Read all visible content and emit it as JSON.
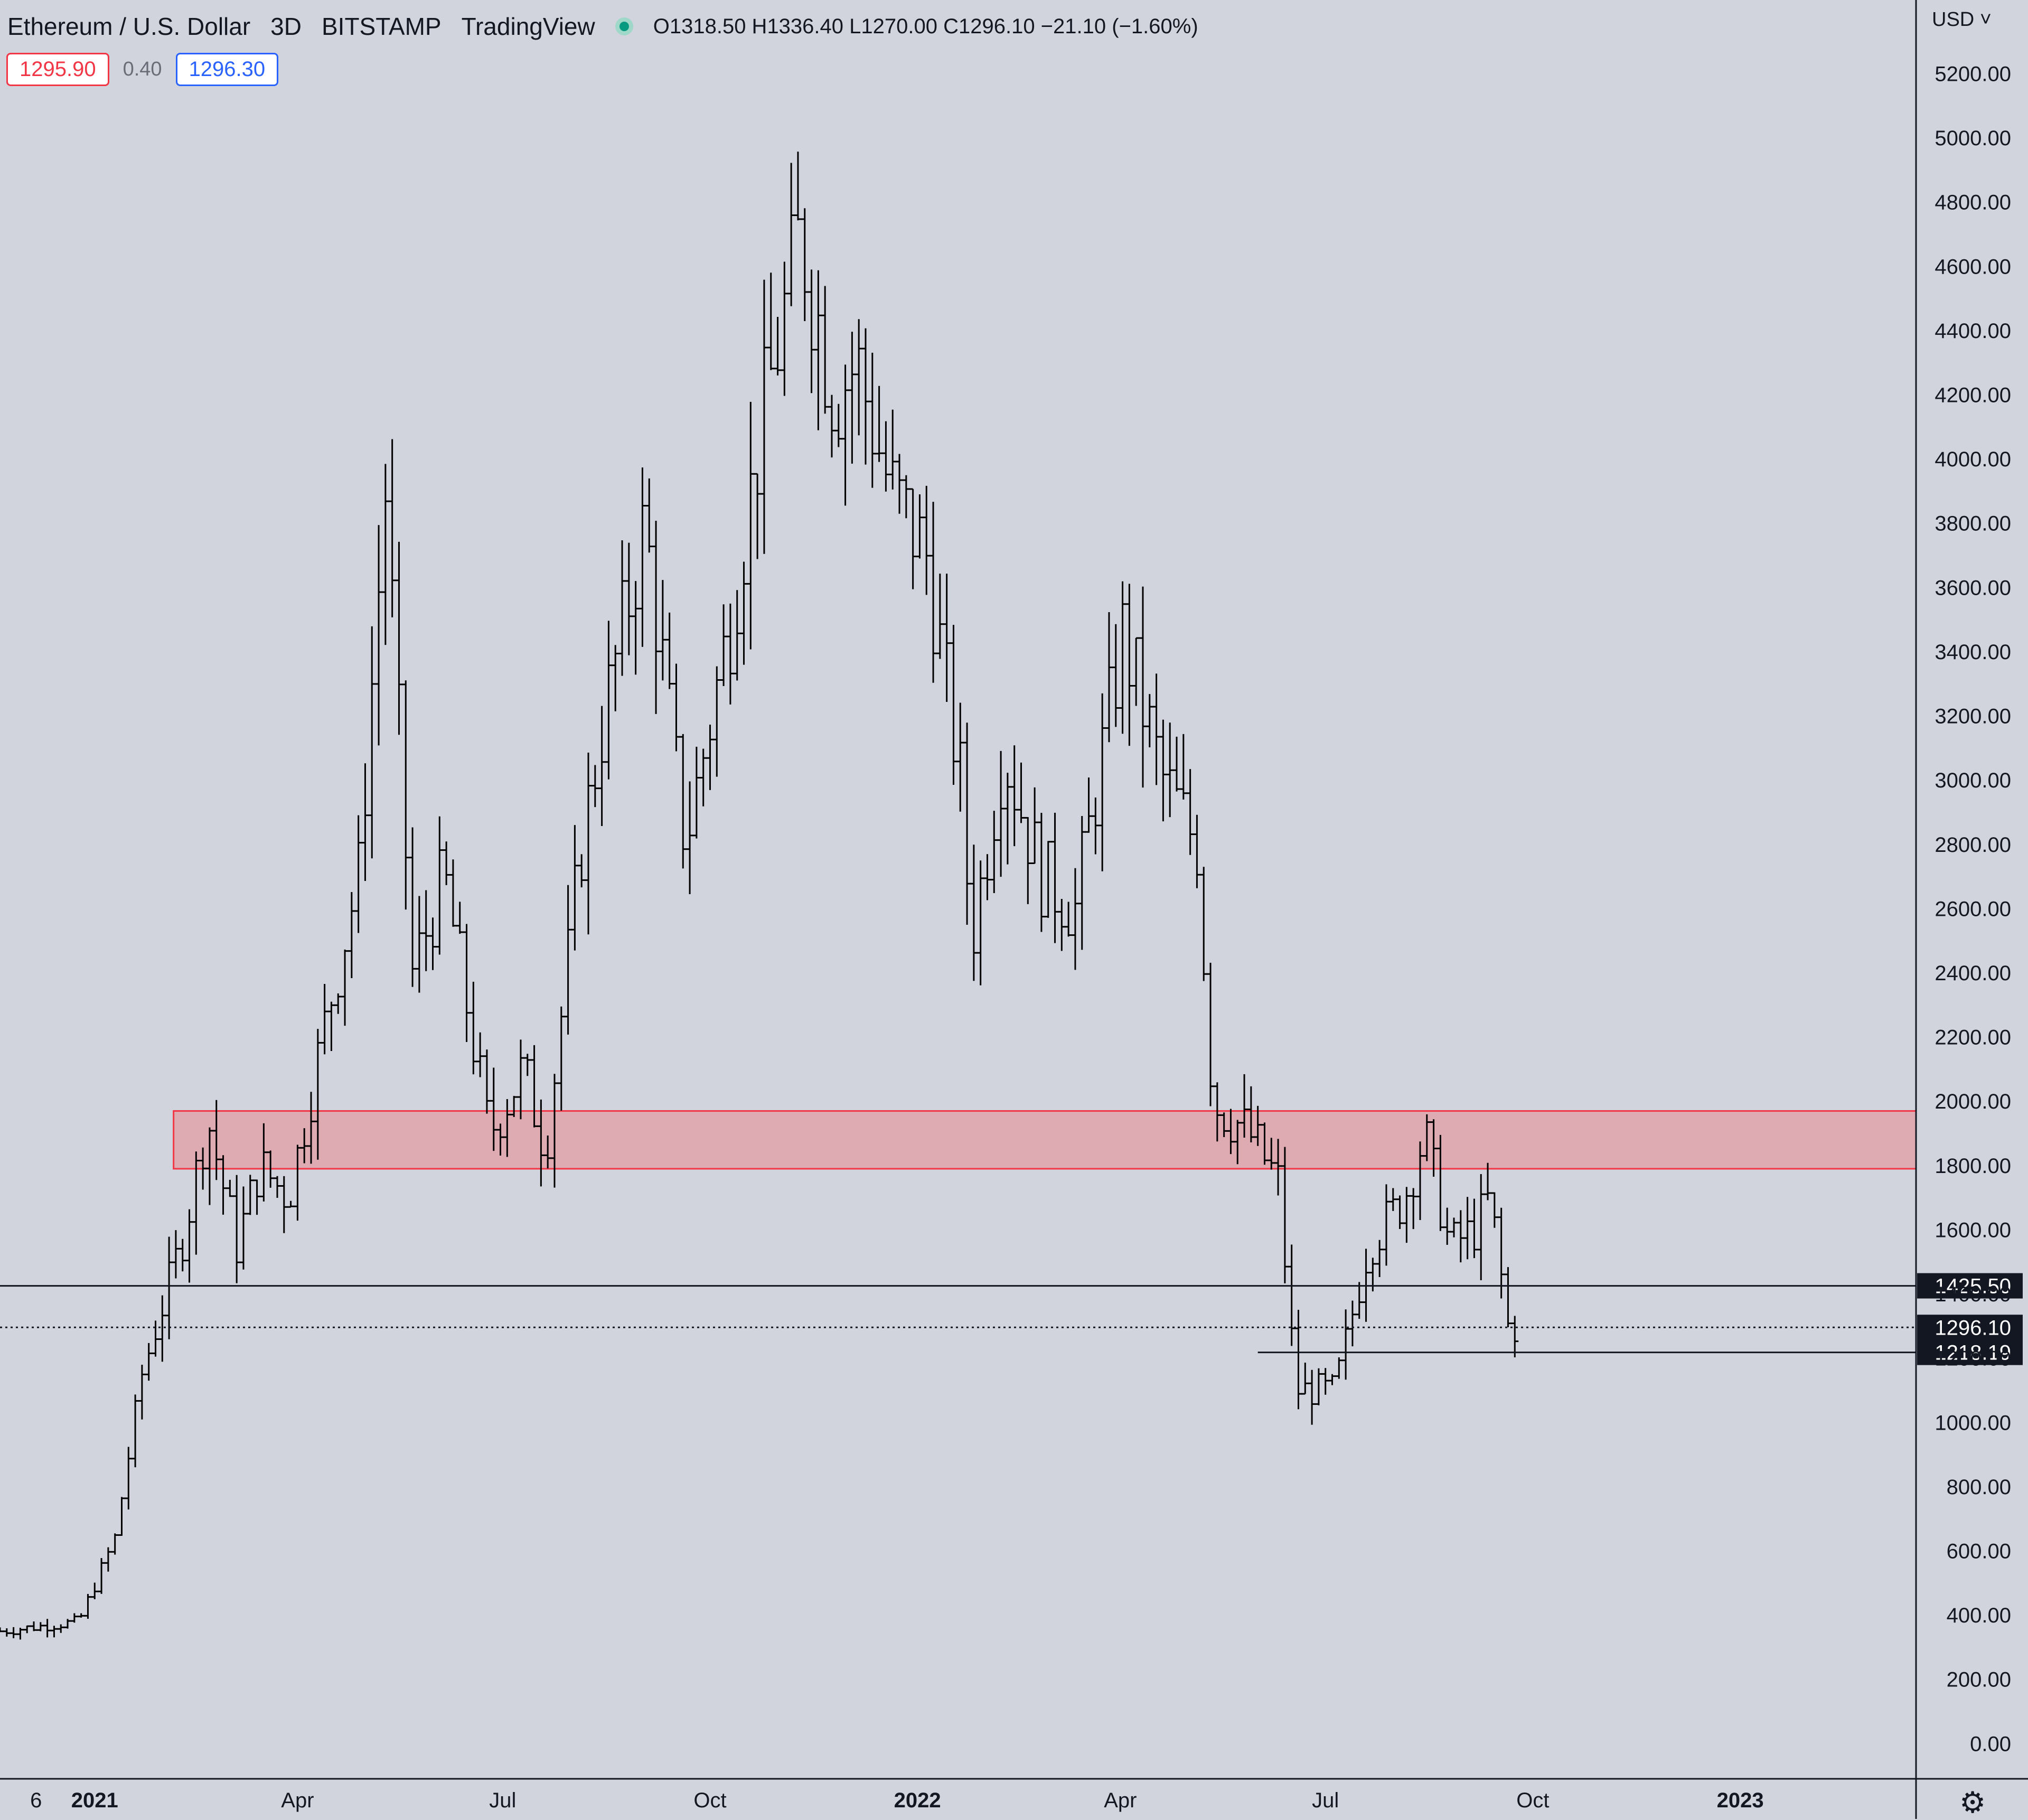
{
  "header": {
    "symbol": "Ethereum / U.S. Dollar",
    "interval": "3D",
    "exchange": "BITSTAMP",
    "provider": "TradingView",
    "ohlc": "O1318.50 H1336.40 L1270.00 C1296.10 −21.10 (−1.60%)"
  },
  "quotes": {
    "bid": "1295.90",
    "spread": "0.40",
    "ask": "1296.30"
  },
  "currency": "USD",
  "icons": {
    "currency_menu": "chevron-down-icon",
    "settings": "gear-icon",
    "status": "market-open-dot-icon"
  },
  "colors": {
    "background": "#d1d4dc",
    "bar": "#000000",
    "zone_fill": "#e0a3ab",
    "zone_border": "#f23645",
    "bid": "#f23645",
    "ask": "#2962ff"
  },
  "chart_data": {
    "type": "ohlc",
    "interval": "3D",
    "ylim": [
      -80,
      5380
    ],
    "xlim": [
      "2020-11-20",
      "2023-03-20"
    ],
    "y_ticks": [
      "0.00",
      "200.00",
      "400.00",
      "600.00",
      "800.00",
      "1000.00",
      "1200.00",
      "1400.00",
      "1600.00",
      "1800.00",
      "2000.00",
      "2200.00",
      "2400.00",
      "2600.00",
      "2800.00",
      "3000.00",
      "3200.00",
      "3400.00",
      "3600.00",
      "3800.00",
      "4000.00",
      "4200.00",
      "4400.00",
      "4600.00",
      "4800.00",
      "5000.00",
      "5200.00"
    ],
    "x_ticks": [
      {
        "label": "6",
        "date": "2020-12-06",
        "bold": false
      },
      {
        "label": "2021",
        "date": "2021-01-01",
        "bold": true
      },
      {
        "label": "Apr",
        "date": "2021-04-01",
        "bold": false
      },
      {
        "label": "Jul",
        "date": "2021-07-01",
        "bold": false
      },
      {
        "label": "Oct",
        "date": "2021-10-01",
        "bold": false
      },
      {
        "label": "2022",
        "date": "2022-01-01",
        "bold": true
      },
      {
        "label": "Apr",
        "date": "2022-04-01",
        "bold": false
      },
      {
        "label": "Jul",
        "date": "2022-07-01",
        "bold": false
      },
      {
        "label": "Oct",
        "date": "2022-10-01",
        "bold": false
      },
      {
        "label": "2023",
        "date": "2023-01-01",
        "bold": true
      }
    ],
    "zone": {
      "start_date": "2021-02-05",
      "y_low": 1790,
      "y_high": 1970
    },
    "horizontal_lines": [
      {
        "y": 1425.5,
        "label": "1425.50",
        "style": "solid",
        "start_date": null
      },
      {
        "y": 1296.1,
        "label": "1296.10",
        "sublabel": "1d 17h",
        "style": "dotted",
        "start_date": null
      },
      {
        "y": 1218.19,
        "label": "1218.19",
        "style": "solid",
        "start_date": "2022-06-01"
      }
    ],
    "series_anchors": [
      {
        "date": "2020-11-20",
        "price": 350
      },
      {
        "date": "2020-12-25",
        "price": 380
      },
      {
        "date": "2021-01-10",
        "price": 640
      },
      {
        "date": "2021-01-22",
        "price": 1150
      },
      {
        "date": "2021-02-10",
        "price": 1600
      },
      {
        "date": "2021-02-20",
        "price": 1950
      },
      {
        "date": "2021-03-05",
        "price": 1550
      },
      {
        "date": "2021-03-15",
        "price": 1800
      },
      {
        "date": "2021-03-28",
        "price": 1700
      },
      {
        "date": "2021-04-15",
        "price": 2300
      },
      {
        "date": "2021-04-28",
        "price": 2700
      },
      {
        "date": "2021-05-10",
        "price": 3900
      },
      {
        "date": "2021-05-22",
        "price": 2400
      },
      {
        "date": "2021-06-05",
        "price": 2700
      },
      {
        "date": "2021-06-25",
        "price": 1900
      },
      {
        "date": "2021-07-10",
        "price": 2100
      },
      {
        "date": "2021-07-20",
        "price": 1850
      },
      {
        "date": "2021-08-05",
        "price": 2800
      },
      {
        "date": "2021-08-15",
        "price": 3200
      },
      {
        "date": "2021-09-02",
        "price": 3800
      },
      {
        "date": "2021-09-20",
        "price": 2800
      },
      {
        "date": "2021-10-10",
        "price": 3500
      },
      {
        "date": "2021-10-25",
        "price": 4150
      },
      {
        "date": "2021-11-10",
        "price": 4700
      },
      {
        "date": "2021-11-25",
        "price": 4200
      },
      {
        "date": "2021-12-05",
        "price": 4300
      },
      {
        "date": "2021-12-20",
        "price": 3900
      },
      {
        "date": "2022-01-05",
        "price": 3700
      },
      {
        "date": "2022-01-20",
        "price": 3000
      },
      {
        "date": "2022-01-25",
        "price": 2500
      },
      {
        "date": "2022-02-08",
        "price": 3100
      },
      {
        "date": "2022-02-25",
        "price": 2700
      },
      {
        "date": "2022-03-12",
        "price": 2600
      },
      {
        "date": "2022-04-02",
        "price": 3450
      },
      {
        "date": "2022-04-20",
        "price": 3000
      },
      {
        "date": "2022-05-05",
        "price": 2800
      },
      {
        "date": "2022-05-12",
        "price": 2000
      },
      {
        "date": "2022-05-28",
        "price": 1900
      },
      {
        "date": "2022-06-10",
        "price": 1750
      },
      {
        "date": "2022-06-18",
        "price": 1100
      },
      {
        "date": "2022-07-05",
        "price": 1100
      },
      {
        "date": "2022-07-20",
        "price": 1550
      },
      {
        "date": "2022-08-05",
        "price": 1700
      },
      {
        "date": "2022-08-14",
        "price": 1900
      },
      {
        "date": "2022-08-25",
        "price": 1550
      },
      {
        "date": "2022-09-05",
        "price": 1600
      },
      {
        "date": "2022-09-12",
        "price": 1700
      },
      {
        "date": "2022-09-20",
        "price": 1300
      },
      {
        "date": "2022-09-25",
        "price": 1296
      }
    ]
  }
}
